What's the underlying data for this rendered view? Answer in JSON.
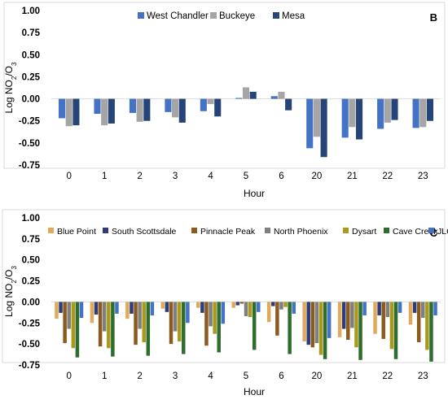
{
  "chart_data": [
    {
      "panel_label": "B",
      "type": "bar",
      "xlabel": "Hour",
      "ylabel_main": "Log NO",
      "ylabel_sub1": "2",
      "ylabel_mid": "/O",
      "ylabel_sub2": "3",
      "ylim": [
        -0.75,
        1.0
      ],
      "yticks": [
        "1.00",
        "0.75",
        "0.50",
        "0.25",
        "0.00",
        "-0.25",
        "-0.50",
        "-0.75"
      ],
      "ytick_values": [
        1.0,
        0.75,
        0.5,
        0.25,
        0.0,
        -0.25,
        -0.5,
        -0.75
      ],
      "grid": false,
      "legend_position": "top-center",
      "categories": [
        "0",
        "1",
        "2",
        "3",
        "4",
        "5",
        "6",
        "20",
        "21",
        "22",
        "23"
      ],
      "series": [
        {
          "name": "West Chandler",
          "color": "#4472C4",
          "values": [
            -0.22,
            -0.17,
            -0.16,
            -0.15,
            -0.14,
            0.01,
            0.03,
            -0.56,
            -0.44,
            -0.34,
            -0.33
          ]
        },
        {
          "name": "Buckeye",
          "color": "#A5A5A5",
          "values": [
            -0.31,
            -0.3,
            -0.26,
            -0.21,
            -0.06,
            0.13,
            0.08,
            -0.43,
            -0.32,
            -0.27,
            -0.32
          ]
        },
        {
          "name": "Mesa",
          "color": "#264478",
          "values": [
            -0.3,
            -0.28,
            -0.25,
            -0.27,
            -0.2,
            0.08,
            -0.13,
            -0.66,
            -0.46,
            -0.24,
            -0.25
          ]
        }
      ]
    },
    {
      "panel_label": "C",
      "type": "bar",
      "xlabel": "Hour",
      "ylabel_main": "Log NO",
      "ylabel_sub1": "2",
      "ylabel_mid": "/O",
      "ylabel_sub2": "3",
      "ylim": [
        -0.75,
        1.0
      ],
      "yticks": [
        "1.00",
        "0.75",
        "0.50",
        "0.25",
        "0.00",
        "-0.25",
        "-0.50",
        "-0.75"
      ],
      "ytick_values": [
        1.0,
        0.75,
        0.5,
        0.25,
        0.0,
        -0.25,
        -0.5,
        -0.75
      ],
      "grid": false,
      "legend_position": "top",
      "categories": [
        "0",
        "1",
        "2",
        "3",
        "4",
        "5",
        "6",
        "20",
        "21",
        "22",
        "23"
      ],
      "series": [
        {
          "name": "Blue Point",
          "color": "#E0AA5C",
          "values": [
            -0.2,
            -0.25,
            -0.2,
            -0.08,
            -0.07,
            -0.07,
            -0.24,
            -0.47,
            -0.42,
            -0.38,
            -0.27
          ]
        },
        {
          "name": "South Scottsdale",
          "color": "#2E3D7A",
          "values": [
            -0.13,
            -0.15,
            -0.14,
            -0.12,
            -0.13,
            -0.04,
            -0.05,
            -0.51,
            -0.32,
            -0.16,
            -0.13
          ]
        },
        {
          "name": "Pinnacle Peak",
          "color": "#8B5A1E",
          "values": [
            -0.49,
            -0.53,
            -0.51,
            -0.5,
            -0.52,
            -0.02,
            -0.4,
            -0.54,
            -0.45,
            -0.44,
            -0.48
          ]
        },
        {
          "name": "North Phoenix",
          "color": "#7F7F7F",
          "values": [
            -0.32,
            -0.35,
            -0.32,
            -0.35,
            -0.29,
            -0.17,
            -0.09,
            -0.49,
            -0.31,
            -0.18,
            -0.19
          ]
        },
        {
          "name": "Dysart",
          "color": "#A99A1E",
          "values": [
            -0.55,
            -0.55,
            -0.48,
            -0.47,
            -0.38,
            -0.18,
            -0.06,
            -0.63,
            -0.54,
            -0.56,
            -0.57
          ]
        },
        {
          "name": "Cave Creek",
          "color": "#2F6D2F",
          "values": [
            -0.66,
            -0.65,
            -0.64,
            -0.62,
            -0.6,
            -0.57,
            -0.62,
            -0.68,
            -0.69,
            -0.68,
            -0.71
          ]
        },
        {
          "name": "JLG",
          "color": "#4472C4",
          "values": [
            -0.19,
            -0.14,
            -0.16,
            -0.25,
            -0.26,
            -0.12,
            -0.14,
            -0.43,
            -0.16,
            -0.13,
            -0.16
          ]
        }
      ]
    }
  ]
}
